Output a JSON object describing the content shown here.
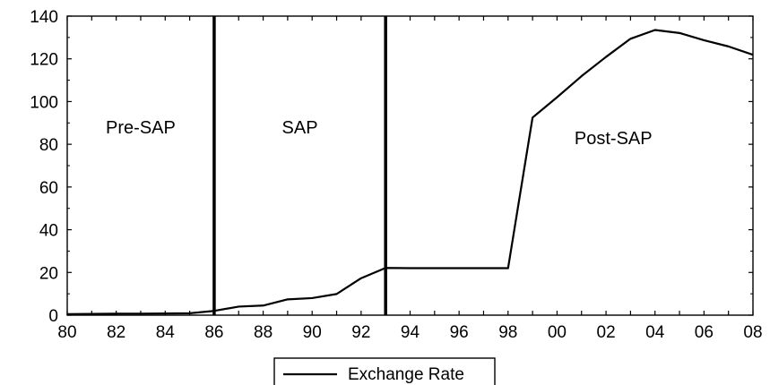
{
  "chart_data": {
    "type": "line",
    "title": "",
    "xlabel": "",
    "ylabel": "",
    "x": [
      1980,
      1981,
      1982,
      1983,
      1984,
      1985,
      1986,
      1987,
      1988,
      1989,
      1990,
      1991,
      1992,
      1993,
      1994,
      1995,
      1996,
      1997,
      1998,
      1999,
      2000,
      2001,
      2002,
      2003,
      2004,
      2005,
      2006,
      2007,
      2008
    ],
    "xlim": [
      1980,
      2008
    ],
    "ylim": [
      0,
      140
    ],
    "x_ticks": [
      1980,
      1982,
      1984,
      1986,
      1988,
      1990,
      1992,
      1994,
      1996,
      1998,
      2000,
      2002,
      2004,
      2006,
      2008
    ],
    "x_tick_labels": [
      "80",
      "82",
      "84",
      "86",
      "88",
      "90",
      "92",
      "94",
      "96",
      "98",
      "00",
      "02",
      "04",
      "06",
      "08"
    ],
    "y_ticks": [
      0,
      20,
      40,
      60,
      80,
      100,
      120,
      140
    ],
    "y_tick_labels": [
      "0",
      "20",
      "40",
      "60",
      "80",
      "100",
      "120",
      "140"
    ],
    "series": [
      {
        "name": "Exchange Rate",
        "color": "#000000",
        "values": [
          0.5,
          0.6,
          0.7,
          0.7,
          0.8,
          0.9,
          2.0,
          4.0,
          4.5,
          7.4,
          8.0,
          9.9,
          17.3,
          22.1,
          22.0,
          22.0,
          22.0,
          22.0,
          22.0,
          92.5,
          102.0,
          111.9,
          120.9,
          129.4,
          133.5,
          132.1,
          128.7,
          125.8,
          121.9
        ]
      }
    ],
    "vertical_lines": [
      1986,
      1993
    ],
    "annotations": [
      {
        "text": "Pre-SAP",
        "x": 1983,
        "y": 85
      },
      {
        "text": "SAP",
        "x": 1989.5,
        "y": 85
      },
      {
        "text": "Post-SAP",
        "x": 2002.3,
        "y": 80
      }
    ],
    "grid": false,
    "legend_position": "bottom-center"
  }
}
